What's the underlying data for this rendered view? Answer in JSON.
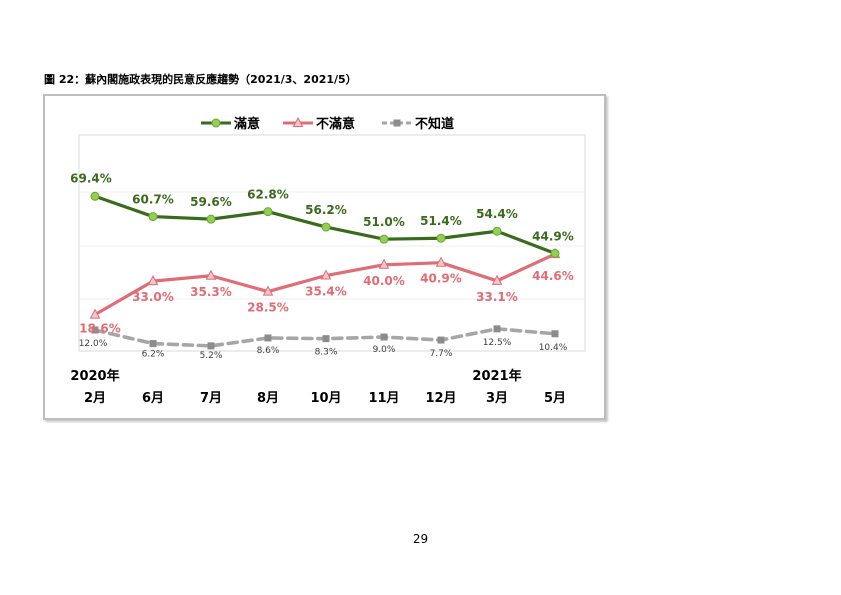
{
  "caption": "圖 22：蘇內閣施政表現的民意反應趨勢（2021/3、2021/5）",
  "page_number": "29",
  "colors": {
    "satisfied": "#3a6b1d",
    "satisfied_marker": "#92d050",
    "dissatisfied": "#e06c75",
    "unknown": "#a6a6a6"
  },
  "chart_data": {
    "type": "line",
    "title": "",
    "xlabel": "",
    "ylabel": "",
    "categories": [
      "2月",
      "6月",
      "7月",
      "8月",
      "10月",
      "11月",
      "12月",
      "3月",
      "5月"
    ],
    "year_labels": [
      {
        "index": 0,
        "label": "2020年"
      },
      {
        "index": 7,
        "label": "2021年"
      }
    ],
    "legend_position": "top",
    "grid": true,
    "series": [
      {
        "name": "滿意",
        "values": [
          69.4,
          60.7,
          59.6,
          62.8,
          56.2,
          51.0,
          51.4,
          54.4,
          44.9
        ],
        "labels": [
          "69.4%",
          "60.7%",
          "59.6%",
          "62.8%",
          "56.2%",
          "51.0%",
          "51.4%",
          "54.4%",
          "44.9%"
        ]
      },
      {
        "name": "不滿意",
        "values": [
          18.6,
          33.0,
          35.3,
          28.5,
          35.4,
          40.0,
          40.9,
          33.1,
          44.6
        ],
        "labels": [
          "18.6%",
          "33.0%",
          "35.3%",
          "28.5%",
          "35.4%",
          "40.0%",
          "40.9%",
          "33.1%",
          "44.6%"
        ]
      },
      {
        "name": "不知道",
        "values": [
          12.0,
          6.2,
          5.2,
          8.6,
          8.3,
          9.0,
          7.7,
          12.5,
          10.4
        ],
        "labels": [
          "12.0%",
          "6.2%",
          "5.2%",
          "8.6%",
          "8.3%",
          "9.0%",
          "7.7%",
          "12.5%",
          "10.4%"
        ]
      }
    ]
  }
}
